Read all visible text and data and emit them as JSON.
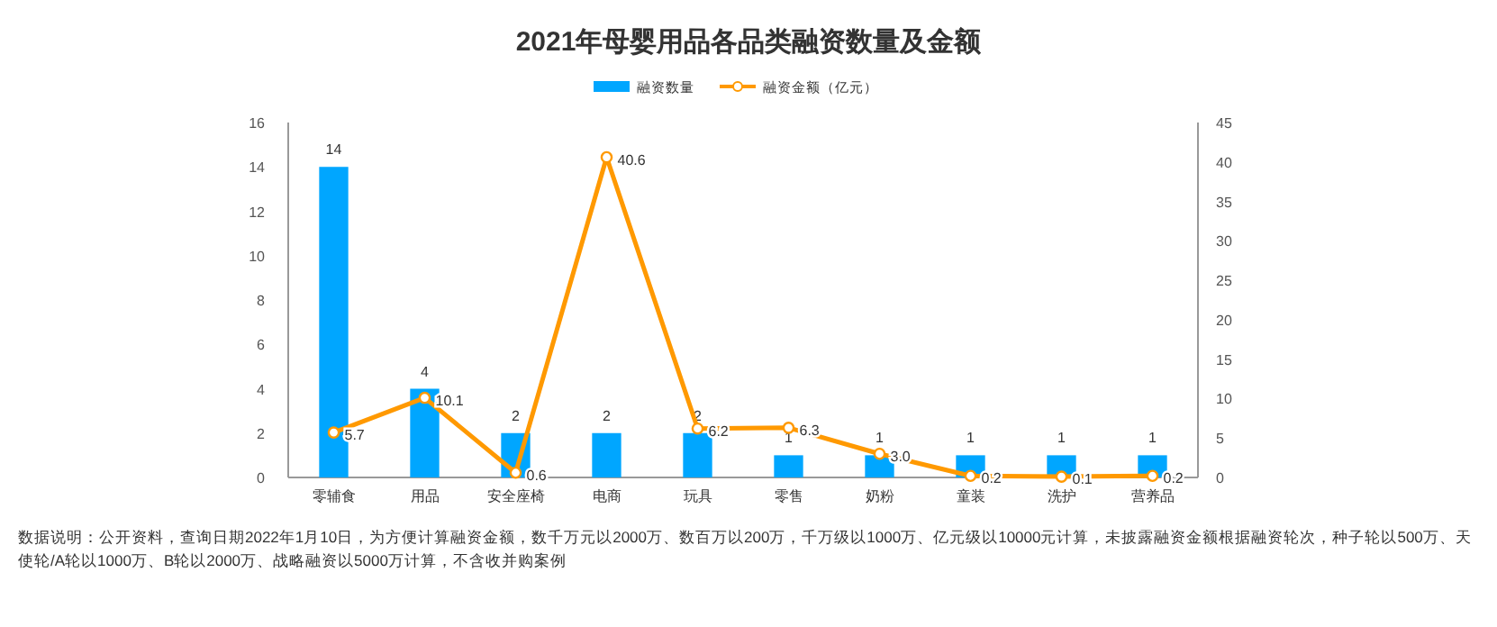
{
  "chart_data": {
    "type": "bar",
    "title": "2021年母婴用品各品类融资数量及金额",
    "categories": [
      "零辅食",
      "用品",
      "安全座椅",
      "电商",
      "玩具",
      "零售",
      "奶粉",
      "童装",
      "洗护",
      "营养品"
    ],
    "series": [
      {
        "name": "融资数量",
        "color": "#00a6ff",
        "values": [
          14,
          4,
          2,
          2,
          2,
          1,
          1,
          1,
          1,
          1
        ],
        "value_labels": [
          "14",
          "4",
          "2",
          "2",
          "2",
          "1",
          "1",
          "1",
          "1",
          "1"
        ]
      },
      {
        "name": "融资金额（亿元）",
        "type": "line",
        "axis": "y2",
        "color": "#ff9900",
        "marker": "circle",
        "values": [
          5.7,
          10.1,
          0.6,
          40.6,
          6.2,
          6.3,
          3.0,
          0.2,
          0.1,
          0.2
        ],
        "value_labels": [
          "5.7",
          "10.1",
          "0.6",
          "40.6",
          "6.2",
          "6.3",
          "3.0",
          "0.2",
          "0.1",
          "0.2"
        ]
      }
    ],
    "ylim": [
      0,
      16
    ],
    "yticks": [
      0,
      2,
      4,
      6,
      8,
      10,
      12,
      14,
      16
    ],
    "y2lim": [
      0,
      45
    ],
    "y2ticks": [
      0,
      5,
      10,
      15,
      20,
      25,
      30,
      35,
      40,
      45
    ],
    "grid": false,
    "legend": "top",
    "annotations": [
      "数据说明：公开资料，查询日期2022年1月10日，为方便计算融资金额，数千万元以2000万、数百万以200万，千万级以1000万、亿元级以10000元计算，未披露融资金额根据融资轮次，种子轮以500万、天使轮/A轮以1000万、B轮以2000万、战略融资以5000万计算，不含收并购案例"
    ]
  }
}
